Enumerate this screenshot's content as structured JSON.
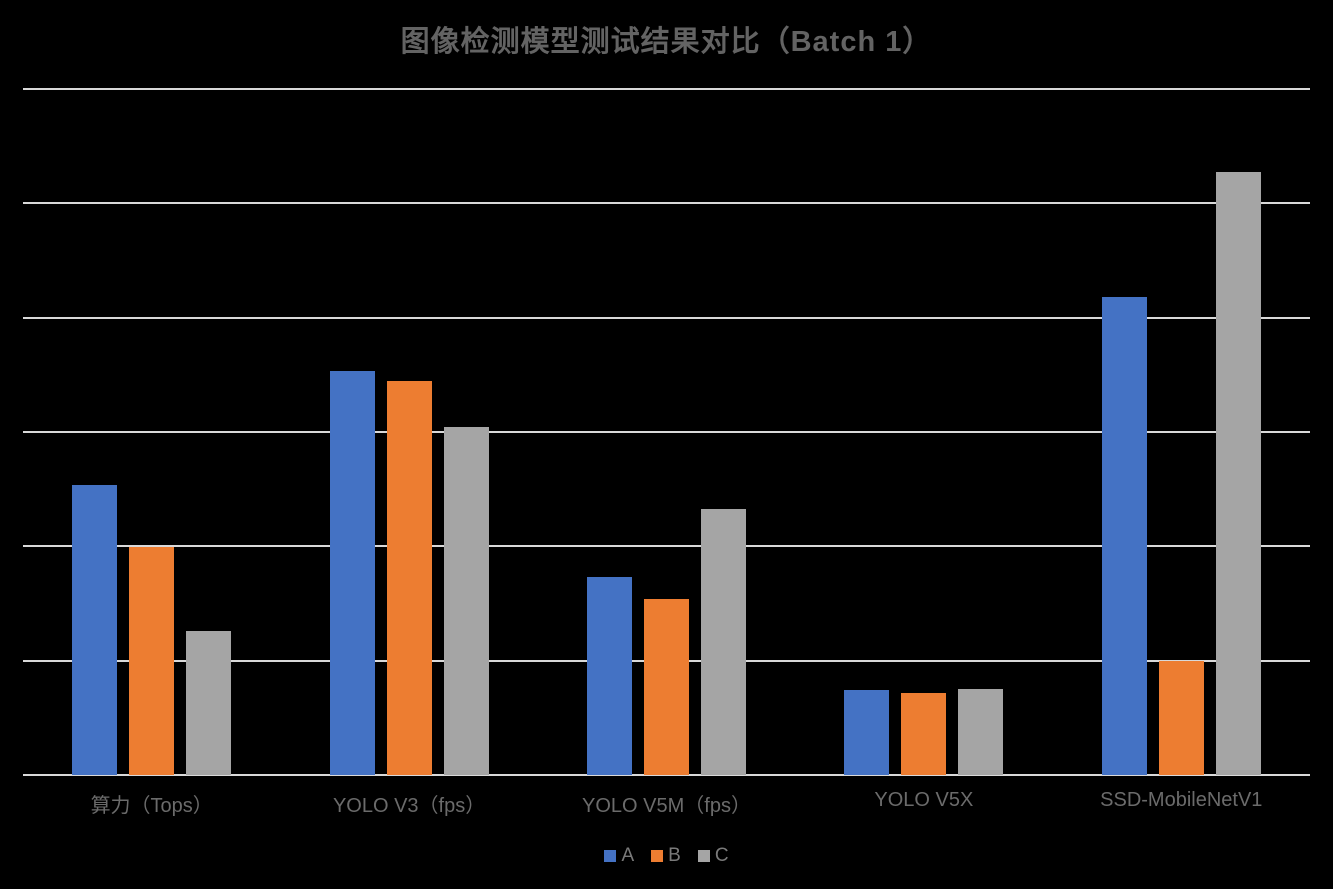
{
  "title": "图像检测模型测试结果对比（Batch 1）",
  "colors": {
    "background": "#000000",
    "gridline": "#d9d9d9",
    "axis_line": "#d9d9d9",
    "title_text": "#636363",
    "category_text": "#6b6b6b",
    "legend_text": "#7a7a7a"
  },
  "legend": {
    "position": "bottom",
    "items": [
      {
        "label": "A",
        "color": "#4472C4"
      },
      {
        "label": "B",
        "color": "#ED7D31"
      },
      {
        "label": "C",
        "color": "#A5A5A5"
      }
    ]
  },
  "chart_data": {
    "type": "bar",
    "title": "图像检测模型测试结果对比（Batch 1）",
    "categories": [
      "算力（Tops）",
      "YOLO V3（fps）",
      "YOLO V5M（fps）",
      "YOLO V5X",
      "SSD-MobileNetV1"
    ],
    "series": [
      {
        "name": "A",
        "color": "#4472C4",
        "values": [
          2.54,
          3.53,
          1.73,
          0.74,
          4.18
        ]
      },
      {
        "name": "B",
        "color": "#ED7D31",
        "values": [
          1.99,
          3.45,
          1.54,
          0.72,
          1.0
        ]
      },
      {
        "name": "C",
        "color": "#A5A5A5",
        "values": [
          1.26,
          3.04,
          2.33,
          0.75,
          5.27
        ]
      }
    ],
    "xlabel": "",
    "ylabel": "",
    "ylim": [
      0,
      6
    ],
    "gridline_interval": 1,
    "y_tick_labels_visible": false,
    "grid": "horizontal",
    "legend_position": "bottom",
    "value_unit_note": "values expressed in gridline units; chart shows no numeric y-axis tick labels"
  }
}
